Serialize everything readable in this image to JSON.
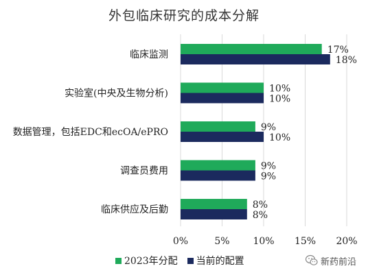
{
  "chart_data": {
    "type": "bar",
    "orientation": "horizontal",
    "title": "外包临床研究的成本分解",
    "categories": [
      "临床监测",
      "实验室(中央及生物分析)",
      "数据管理，包括EDC和ecOA/ePRO",
      "调查员费用",
      "临床供应及后勤"
    ],
    "series": [
      {
        "name": "2023年分配",
        "color": "#1faa5a",
        "values": [
          17,
          10,
          9,
          9,
          8
        ],
        "labels": [
          "17%",
          "10%",
          "9%",
          "9%",
          "8%"
        ]
      },
      {
        "name": "当前的配置",
        "color": "#1b2a5e",
        "values": [
          18,
          10,
          10,
          9,
          8
        ],
        "labels": [
          "18%",
          "10%",
          "10%",
          "9%",
          "8%"
        ]
      }
    ],
    "xlim": [
      0,
      20
    ],
    "xticks": [
      0,
      5,
      10,
      15,
      20
    ],
    "xtick_labels": [
      "0%",
      "5%",
      "10%",
      "15%",
      "20%"
    ],
    "grid": "vertical",
    "legend_position": "bottom"
  },
  "watermark": {
    "text": "新药前沿",
    "icon": "wechat-icon"
  }
}
